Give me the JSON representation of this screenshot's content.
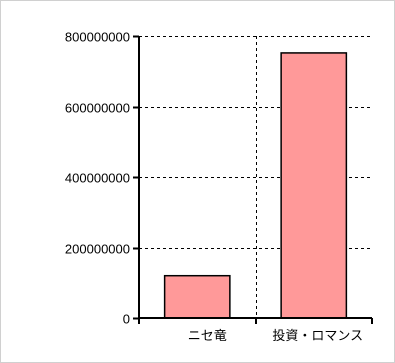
{
  "chart_data": {
    "type": "bar",
    "categories": [
      "ニセ竜",
      "投資・ロマンス"
    ],
    "values": [
      120000000,
      752000000
    ],
    "ylim": [
      0,
      800000000
    ],
    "yticks": [
      0,
      200000000,
      400000000,
      600000000,
      800000000
    ],
    "ytick_labels": [
      "0",
      "200000000",
      "400000000",
      "600000000",
      "800000000"
    ],
    "title": "",
    "xlabel": "",
    "ylabel": "",
    "grid": "dashed",
    "bar_color": "#ff9999",
    "bar_edge_color": "#000000"
  }
}
